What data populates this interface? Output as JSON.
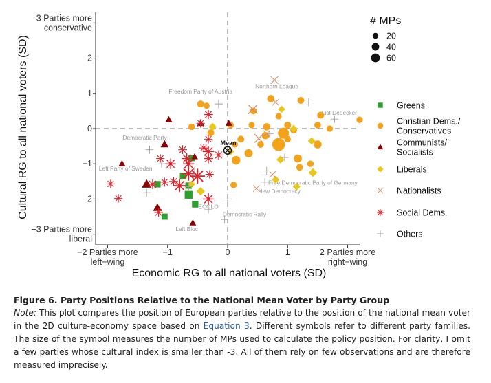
{
  "chart_data": {
    "type": "scatter",
    "xlabel": "Economic RG to all national voters (SD)",
    "ylabel": "Cultural RG to all national voters (SD)",
    "xlim": [
      -2.2,
      2.2
    ],
    "ylim": [
      -3.3,
      3.3
    ],
    "x_ticks": [
      {
        "value": -2,
        "label": [
          "−2 Parties more",
          "left−wing"
        ]
      },
      {
        "value": -1,
        "label": [
          "−1"
        ]
      },
      {
        "value": 0,
        "label": [
          "0"
        ]
      },
      {
        "value": 1,
        "label": [
          "1"
        ]
      },
      {
        "value": 2,
        "label": [
          "2 Parties more",
          "right−wing"
        ]
      }
    ],
    "y_ticks": [
      {
        "value": 3,
        "label": [
          "3 Parties more",
          "conservative"
        ]
      },
      {
        "value": 2,
        "label": [
          "2"
        ]
      },
      {
        "value": 1,
        "label": [
          "1"
        ]
      },
      {
        "value": 0,
        "label": [
          "0"
        ]
      },
      {
        "value": -1,
        "label": [
          "−1"
        ]
      },
      {
        "value": -2,
        "label": [
          "−2"
        ]
      },
      {
        "value": -3,
        "label": [
          "−3 Parties more",
          "liberal"
        ]
      }
    ],
    "reference_lines": {
      "x": 0,
      "y": 0,
      "style": "dashed"
    },
    "mean_label": "Mean",
    "size_legend": {
      "title": "# MPs",
      "entries": [
        20,
        40,
        60
      ]
    },
    "groups": [
      {
        "key": "greens",
        "name": "Greens",
        "symbol": "square",
        "color": "#2ca02c"
      },
      {
        "key": "christian",
        "name": "Christian Dems./ Conservatives",
        "symbol": "circle",
        "color": "#f5a21b"
      },
      {
        "key": "communists",
        "name": "Communists/ Socialists",
        "symbol": "triangle",
        "color": "#8b0000"
      },
      {
        "key": "liberals",
        "name": "Liberals",
        "symbol": "diamond",
        "color": "#e8c81a"
      },
      {
        "key": "nationalists",
        "name": "Nationalists",
        "symbol": "x",
        "color": "#d98c5f"
      },
      {
        "key": "socialdems",
        "name": "Social Dems.",
        "symbol": "asterisk",
        "color": "#e0202a"
      },
      {
        "key": "others",
        "name": "Others",
        "symbol": "plus",
        "color": "#a0a0a0"
      }
    ],
    "annotations": [
      {
        "text": "Freedom Party of Austria",
        "x": -0.45,
        "y": 1.05
      },
      {
        "text": "Northern League",
        "x": 0.82,
        "y": 1.2
      },
      {
        "text": "List Dedecker",
        "x": 1.86,
        "y": 0.45
      },
      {
        "text": "Democratic Party",
        "x": -1.38,
        "y": -0.25
      },
      {
        "text": "Left Party of Sweden",
        "x": -1.7,
        "y": -1.13
      },
      {
        "text": "Free Democratic Party of Germany",
        "x": 1.42,
        "y": -1.53
      },
      {
        "text": "New Democracy",
        "x": 0.86,
        "y": -1.78
      },
      {
        "text": "ECOLO",
        "x": -0.32,
        "y": -2.22
      },
      {
        "text": "Democratic Rally",
        "x": 0.28,
        "y": -2.43
      },
      {
        "text": "Left Bloc",
        "x": -0.68,
        "y": -2.85
      }
    ],
    "series": [
      {
        "group": "greens",
        "points": [
          {
            "x": -0.74,
            "y": -1.35,
            "mps": 14
          },
          {
            "x": -0.65,
            "y": -1.88,
            "mps": 22
          },
          {
            "x": -0.54,
            "y": -2.15,
            "mps": 12
          },
          {
            "x": -0.6,
            "y": -0.84,
            "mps": 10
          },
          {
            "x": -0.65,
            "y": -1.62,
            "mps": 12
          },
          {
            "x": -1.05,
            "y": -2.5,
            "mps": 10
          },
          {
            "x": -1.17,
            "y": -1.58,
            "mps": 12
          }
        ]
      },
      {
        "group": "christian",
        "points": [
          {
            "x": 0.85,
            "y": -0.45,
            "mps": 60
          },
          {
            "x": 0.93,
            "y": -0.13,
            "mps": 40
          },
          {
            "x": 0.14,
            "y": -0.9,
            "mps": 20
          },
          {
            "x": 0.35,
            "y": -0.7,
            "mps": 18
          },
          {
            "x": 1.17,
            "y": -0.85,
            "mps": 16
          },
          {
            "x": 1.5,
            "y": -0.45,
            "mps": 16
          },
          {
            "x": 0.65,
            "y": 0.05,
            "mps": 12
          },
          {
            "x": 0.72,
            "y": 0.85,
            "mps": 12
          },
          {
            "x": 0.63,
            "y": -0.2,
            "mps": 12
          },
          {
            "x": -0.45,
            "y": 0.7,
            "mps": 10
          },
          {
            "x": 1.22,
            "y": 0.8,
            "mps": 10
          },
          {
            "x": 1.1,
            "y": -0.04,
            "mps": 10
          },
          {
            "x": 1.55,
            "y": 0.38,
            "mps": 10
          },
          {
            "x": 0.22,
            "y": -0.3,
            "mps": 10
          },
          {
            "x": -0.28,
            "y": -0.12,
            "mps": 10
          },
          {
            "x": 1.0,
            "y": 0.1,
            "mps": 10
          },
          {
            "x": 0.43,
            "y": 0.5,
            "mps": 9
          },
          {
            "x": 1.2,
            "y": -1.1,
            "mps": 9
          },
          {
            "x": 1.5,
            "y": 0.1,
            "mps": 9
          },
          {
            "x": 0.55,
            "y": -0.45,
            "mps": 9
          },
          {
            "x": 2.2,
            "y": 0.25,
            "mps": 8
          },
          {
            "x": 1.0,
            "y": -0.3,
            "mps": 8
          },
          {
            "x": 0.1,
            "y": -1.6,
            "mps": 8
          },
          {
            "x": -0.6,
            "y": 0.05,
            "mps": 8
          },
          {
            "x": 0.05,
            "y": 0.1,
            "mps": 8
          },
          {
            "x": 1.38,
            "y": -1.0,
            "mps": 8
          },
          {
            "x": 1.7,
            "y": 0.0,
            "mps": 8
          },
          {
            "x": 0.12,
            "y": -0.45,
            "mps": 7
          },
          {
            "x": -0.35,
            "y": 0.65,
            "mps": 7
          },
          {
            "x": 0.4,
            "y": 0.1,
            "mps": 7
          },
          {
            "x": 0.85,
            "y": 0.35,
            "mps": 7
          }
        ]
      },
      {
        "group": "communists",
        "points": [
          {
            "x": -1.35,
            "y": -1.58,
            "mps": 24
          },
          {
            "x": -1.17,
            "y": -2.25,
            "mps": 18
          },
          {
            "x": -1.05,
            "y": -0.45,
            "mps": 14
          },
          {
            "x": -0.98,
            "y": 0.25,
            "mps": 10
          },
          {
            "x": -0.45,
            "y": 0.15,
            "mps": 10
          },
          {
            "x": -1.76,
            "y": -1.0,
            "mps": 9
          },
          {
            "x": -0.58,
            "y": -2.68,
            "mps": 8
          },
          {
            "x": -0.55,
            "y": -0.8,
            "mps": 8
          },
          {
            "x": 0.02,
            "y": 0.15,
            "mps": 8
          }
        ]
      },
      {
        "group": "liberals",
        "points": [
          {
            "x": 1.42,
            "y": -1.25,
            "mps": 16
          },
          {
            "x": -0.45,
            "y": -1.78,
            "mps": 14
          },
          {
            "x": -0.25,
            "y": 0.05,
            "mps": 12
          },
          {
            "x": 0.88,
            "y": -0.88,
            "mps": 12
          },
          {
            "x": 0.8,
            "y": -1.45,
            "mps": 10
          },
          {
            "x": 1.15,
            "y": -1.65,
            "mps": 10
          },
          {
            "x": 1.4,
            "y": -0.35,
            "mps": 10
          },
          {
            "x": 1.1,
            "y": 0.0,
            "mps": 10
          },
          {
            "x": 0.9,
            "y": 0.55,
            "mps": 9
          },
          {
            "x": -0.6,
            "y": -1.58,
            "mps": 9
          },
          {
            "x": 0.05,
            "y": -0.65,
            "mps": 9
          }
        ]
      },
      {
        "group": "nationalists",
        "points": [
          {
            "x": 0.42,
            "y": 0.55,
            "mps": 28
          },
          {
            "x": 0.52,
            "y": -0.28,
            "mps": 22
          },
          {
            "x": 0.78,
            "y": 1.38,
            "mps": 16
          },
          {
            "x": 0.48,
            "y": -1.7,
            "mps": 10
          },
          {
            "x": 0.75,
            "y": -1.3,
            "mps": 10
          },
          {
            "x": 0.65,
            "y": -0.15,
            "mps": 10
          },
          {
            "x": 0.8,
            "y": 0.75,
            "mps": 10
          }
        ]
      },
      {
        "group": "socialdems",
        "points": [
          {
            "x": -0.5,
            "y": -1.35,
            "mps": 60
          },
          {
            "x": -0.65,
            "y": -1.28,
            "mps": 52
          },
          {
            "x": -0.8,
            "y": -1.62,
            "mps": 40
          },
          {
            "x": -0.32,
            "y": -0.65,
            "mps": 30
          },
          {
            "x": -0.65,
            "y": -1.0,
            "mps": 30
          },
          {
            "x": -0.32,
            "y": -2.0,
            "mps": 30
          },
          {
            "x": -0.68,
            "y": -0.85,
            "mps": 26
          },
          {
            "x": -0.95,
            "y": -1.0,
            "mps": 24
          },
          {
            "x": -1.25,
            "y": -1.58,
            "mps": 18
          },
          {
            "x": -0.32,
            "y": -0.85,
            "mps": 18
          },
          {
            "x": -0.15,
            "y": -0.75,
            "mps": 16
          },
          {
            "x": -0.32,
            "y": 0.4,
            "mps": 16
          },
          {
            "x": -0.9,
            "y": -1.5,
            "mps": 14
          },
          {
            "x": -1.15,
            "y": -2.38,
            "mps": 14
          },
          {
            "x": -1.05,
            "y": -1.52,
            "mps": 14
          },
          {
            "x": -0.75,
            "y": -0.6,
            "mps": 14
          },
          {
            "x": -0.45,
            "y": 0.15,
            "mps": 12
          },
          {
            "x": -1.12,
            "y": -0.85,
            "mps": 12
          },
          {
            "x": -0.3,
            "y": -1.3,
            "mps": 12
          },
          {
            "x": -0.32,
            "y": -0.3,
            "mps": 12
          },
          {
            "x": -1.95,
            "y": -1.57,
            "mps": 12
          },
          {
            "x": -0.4,
            "y": -0.55,
            "mps": 12
          },
          {
            "x": -1.82,
            "y": -1.98,
            "mps": 12
          }
        ]
      },
      {
        "group": "others",
        "points": [
          {
            "x": -0.15,
            "y": 0.7,
            "mps": 12
          },
          {
            "x": 1.35,
            "y": 0.75,
            "mps": 10
          },
          {
            "x": 0.65,
            "y": -1.2,
            "mps": 10
          },
          {
            "x": -0.55,
            "y": -1.2,
            "mps": 10
          },
          {
            "x": -1.3,
            "y": -0.6,
            "mps": 10
          },
          {
            "x": 0.62,
            "y": -1.52,
            "mps": 10
          },
          {
            "x": -1.1,
            "y": -1.0,
            "mps": 9
          },
          {
            "x": -0.32,
            "y": -2.3,
            "mps": 9
          },
          {
            "x": -0.65,
            "y": -1.65,
            "mps": 9
          },
          {
            "x": -1.35,
            "y": -1.82,
            "mps": 9
          },
          {
            "x": 0.0,
            "y": -2.0,
            "mps": 9
          },
          {
            "x": 0.7,
            "y": -0.15,
            "mps": 9
          },
          {
            "x": 1.78,
            "y": 0.27,
            "mps": 9
          },
          {
            "x": -0.05,
            "y": -2.58,
            "mps": 9
          },
          {
            "x": 0.95,
            "y": -0.82,
            "mps": 9
          }
        ]
      }
    ],
    "mean_point": {
      "x": 0.0,
      "y": -0.62
    }
  },
  "caption": {
    "title": "Figure 6. Party Positions Relative to the National Mean Voter by Party Group",
    "note_label": "Note:",
    "text_before_ref": " This plot compares the position of European parties relative to the position of the national mean voter in the 2D culture-economy space based on ",
    "ref": "Equation 3",
    "text_after_ref": ". Different symbols refer to different party families. The size of the symbol measures the number of MPs used to calculate the policy position. For clarity, I omit a few parties whose cultural index is smaller than -3. All of them rely on few observations and are therefore measured imprecisely."
  }
}
